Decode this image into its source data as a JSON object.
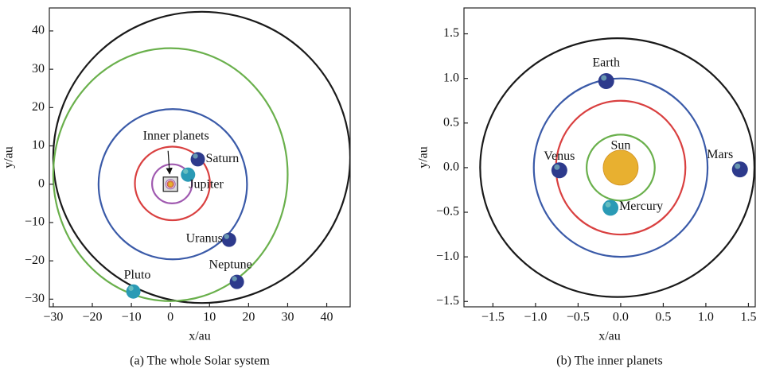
{
  "chart_data": [
    {
      "type": "orbit",
      "caption": "(a) The whole Solar system",
      "xlabel": "x/au",
      "ylabel": "y/au",
      "xlim": [
        -31,
        46
      ],
      "ylim": [
        -32,
        46
      ],
      "xticks": [
        {
          "value": -30,
          "label": "−30"
        },
        {
          "value": -20,
          "label": "−20"
        },
        {
          "value": -10,
          "label": "−10"
        },
        0,
        10,
        20,
        30,
        40
      ],
      "yticks": [
        {
          "value": -30,
          "label": "−30"
        },
        {
          "value": -20,
          "label": "−20"
        },
        {
          "value": -10,
          "label": "−10"
        },
        0,
        10,
        20,
        30,
        40
      ],
      "orbits": [
        {
          "color": "#1a1a1a",
          "cx": 8,
          "cy": 7,
          "rx": 38,
          "ry": 38
        },
        {
          "color": "#6ab04c",
          "cx": 0,
          "cy": 2.5,
          "rx": 30,
          "ry": 33
        },
        {
          "color": "#3a5aa8",
          "cx": 0.6,
          "cy": 0,
          "rx": 19,
          "ry": 19.6
        },
        {
          "color": "#d94040",
          "cx": 0.5,
          "cy": 0.2,
          "rx": 9.6,
          "ry": 9.6
        },
        {
          "color": "#a05ab0",
          "cx": 0.4,
          "cy": 0.1,
          "rx": 5.1,
          "ry": 5.1
        }
      ],
      "sun": {
        "x": 0,
        "y": 0,
        "color": "#e8b030"
      },
      "bodies": [
        {
          "name": "Saturn",
          "x": 7,
          "y": 6.5,
          "color": "#2d3a8c"
        },
        {
          "name": "Jupiter",
          "x": 4.5,
          "y": 2.5,
          "color": "#2a9ab5"
        },
        {
          "name": "Uranus",
          "x": 15,
          "y": -14.5,
          "color": "#2d3a8c"
        },
        {
          "name": "Neptune",
          "x": 17,
          "y": -25.5,
          "color": "#2d3a8c"
        },
        {
          "name": "Pluto",
          "x": -9.5,
          "y": -28,
          "color": "#2a9ab5"
        }
      ],
      "annotation": "Inner planets"
    },
    {
      "type": "orbit",
      "caption": "(b) The inner planets",
      "xlabel": "x/au",
      "ylabel": "y/au",
      "xlim": [
        -1.84,
        1.58
      ],
      "ylim": [
        -1.56,
        1.79
      ],
      "xticks": [
        {
          "value": -1.5,
          "label": "−1.5"
        },
        {
          "value": -1.0,
          "label": "−1.0"
        },
        {
          "value": -0.5,
          "label": "−0.5"
        },
        {
          "value": 0,
          "label": "0.0"
        },
        0.5,
        {
          "value": 1.0,
          "label": "1.0"
        },
        1.5
      ],
      "yticks": [
        {
          "value": -1.5,
          "label": "−1.5"
        },
        {
          "value": -1.0,
          "label": "−1.0"
        },
        {
          "value": -0.5,
          "label": "−0.5"
        },
        {
          "value": 0,
          "label": "0.0"
        },
        0.5,
        {
          "value": 1.0,
          "label": "1.0"
        },
        1.5
      ],
      "orbits": [
        {
          "color": "#1a1a1a",
          "cx": -0.04,
          "cy": 0,
          "rx": 1.61,
          "ry": 1.45
        },
        {
          "color": "#3a5aa8",
          "cx": 0,
          "cy": 0,
          "rx": 1.02,
          "ry": 1.0
        },
        {
          "color": "#d94040",
          "cx": 0,
          "cy": 0,
          "rx": 0.76,
          "ry": 0.75
        },
        {
          "color": "#6ab04c",
          "cx": 0,
          "cy": 0,
          "rx": 0.4,
          "ry": 0.37
        }
      ],
      "sun": {
        "name": "Sun",
        "x": 0,
        "y": 0,
        "color": "#e8b030"
      },
      "bodies": [
        {
          "name": "Earth",
          "x": -0.17,
          "y": 0.97,
          "color": "#2d3a8c"
        },
        {
          "name": "Venus",
          "x": -0.72,
          "y": -0.03,
          "color": "#2d3a8c"
        },
        {
          "name": "Mars",
          "x": 1.4,
          "y": -0.02,
          "color": "#2d3a8c"
        },
        {
          "name": "Mercury",
          "x": -0.12,
          "y": -0.45,
          "color": "#2a9ab5"
        }
      ]
    }
  ]
}
